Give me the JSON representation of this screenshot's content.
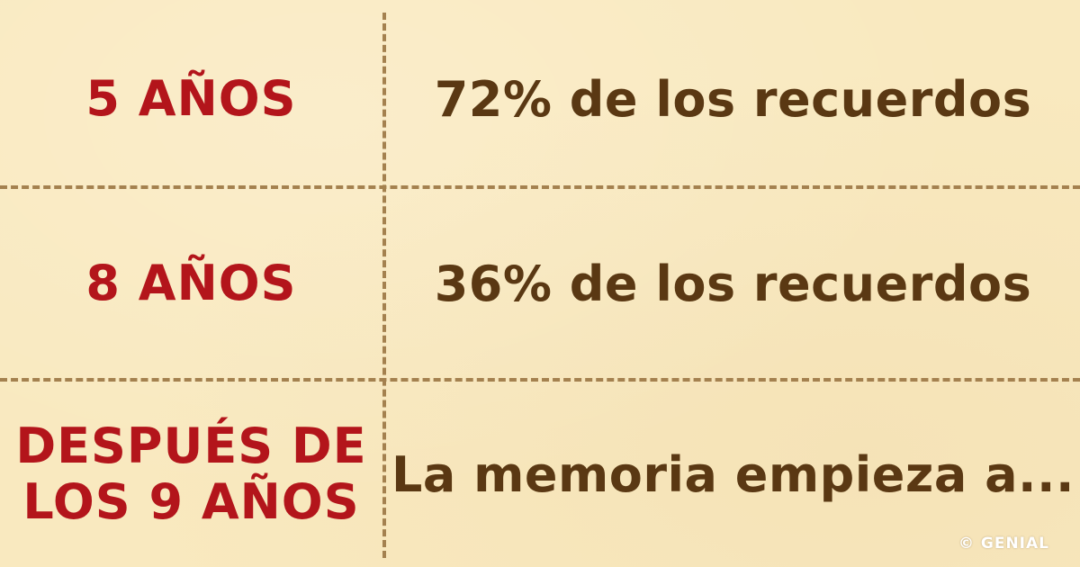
{
  "rows": [
    {
      "age": "5 AÑOS",
      "memory": "72% de los recuerdos"
    },
    {
      "age": "8 AÑOS",
      "memory": "36% de los recuerdos"
    },
    {
      "age_lines": [
        "DESPUÉS DE",
        "LOS 9 AÑOS"
      ],
      "memory": "La memoria empieza a..."
    }
  ],
  "credit": "© GENIAL",
  "colors": {
    "background": "#f9e9bf",
    "age_text": "#b3151b",
    "memory_text": "#5a3813",
    "divider": "#a4814f"
  }
}
